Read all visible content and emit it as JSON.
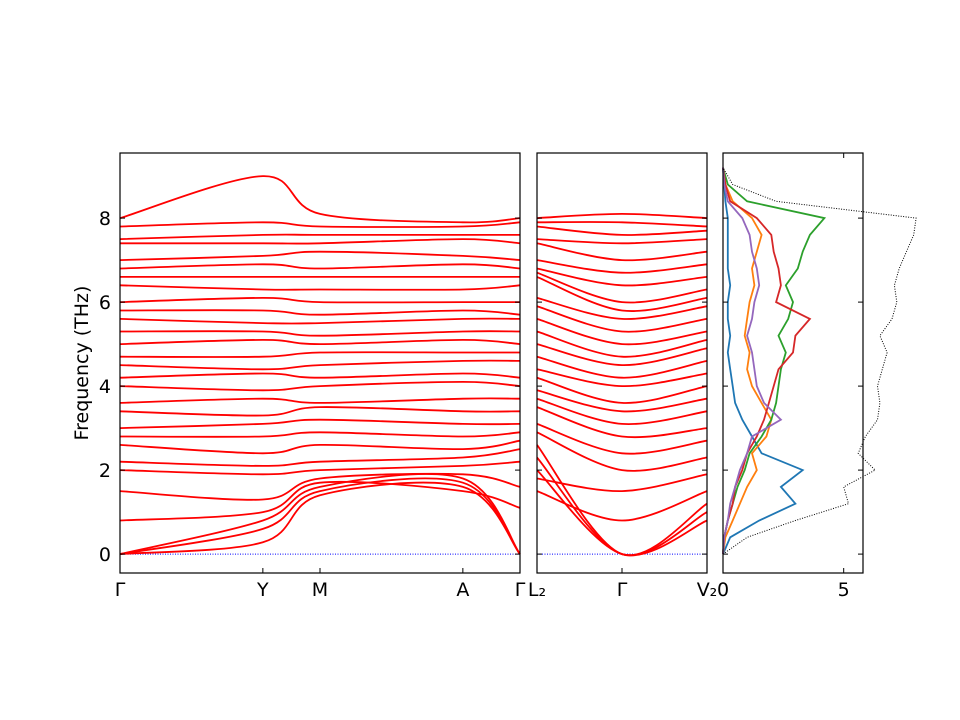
{
  "chart_data": [
    {
      "type": "line",
      "panel": "band-structure-1",
      "ylabel": "Frequency (THz)",
      "ylim": [
        -0.45,
        9.55
      ],
      "yticks": [
        0,
        2,
        4,
        6,
        8
      ],
      "xticks": [
        {
          "label": "Γ",
          "x": 0.0
        },
        {
          "label": "Y",
          "x": 1.0
        },
        {
          "label": "M",
          "x": 1.4
        },
        {
          "label": "A",
          "x": 2.4
        },
        {
          "label": "Γ",
          "x": 2.8
        }
      ],
      "xlim": [
        0,
        2.8
      ],
      "series": [
        {
          "values_at_ticks": [
            0,
            0.28,
            1.4,
            1.6,
            0
          ]
        },
        {
          "values_at_ticks": [
            0,
            0.6,
            1.5,
            1.7,
            0
          ]
        },
        {
          "values_at_ticks": [
            0,
            0.8,
            1.6,
            1.8,
            0
          ]
        },
        {
          "values_at_ticks": [
            0.8,
            1.0,
            1.7,
            1.5,
            1.1
          ]
        },
        {
          "values_at_ticks": [
            1.5,
            1.3,
            1.8,
            1.9,
            1.6
          ]
        },
        {
          "values_at_ticks": [
            2.0,
            1.9,
            2.0,
            2.1,
            2.2
          ]
        },
        {
          "values_at_ticks": [
            2.2,
            2.1,
            2.2,
            2.3,
            2.5
          ]
        },
        {
          "values_at_ticks": [
            2.6,
            2.4,
            2.6,
            2.5,
            2.7
          ]
        },
        {
          "values_at_ticks": [
            2.8,
            2.8,
            2.9,
            2.8,
            2.9
          ]
        },
        {
          "values_at_ticks": [
            3.0,
            3.1,
            3.2,
            3.1,
            3.1
          ]
        },
        {
          "values_at_ticks": [
            3.4,
            3.3,
            3.5,
            3.4,
            3.4
          ]
        },
        {
          "values_at_ticks": [
            3.6,
            3.7,
            3.6,
            3.7,
            3.7
          ]
        },
        {
          "values_at_ticks": [
            4.0,
            3.9,
            4.0,
            4.1,
            4.0
          ]
        },
        {
          "values_at_ticks": [
            4.2,
            4.3,
            4.2,
            4.3,
            4.2
          ]
        },
        {
          "values_at_ticks": [
            4.5,
            4.4,
            4.5,
            4.6,
            4.6
          ]
        },
        {
          "values_at_ticks": [
            4.7,
            4.7,
            4.8,
            4.8,
            4.8
          ]
        },
        {
          "values_at_ticks": [
            5.0,
            5.1,
            5.0,
            5.1,
            5.0
          ]
        },
        {
          "values_at_ticks": [
            5.3,
            5.3,
            5.2,
            5.3,
            5.3
          ]
        },
        {
          "values_at_ticks": [
            5.6,
            5.5,
            5.5,
            5.6,
            5.6
          ]
        },
        {
          "values_at_ticks": [
            5.8,
            5.8,
            5.7,
            5.8,
            5.7
          ]
        },
        {
          "values_at_ticks": [
            6.0,
            6.1,
            6.0,
            6.0,
            6.0
          ]
        },
        {
          "values_at_ticks": [
            6.4,
            6.3,
            6.3,
            6.3,
            6.4
          ]
        },
        {
          "values_at_ticks": [
            6.6,
            6.6,
            6.6,
            6.6,
            6.6
          ]
        },
        {
          "values_at_ticks": [
            6.8,
            6.9,
            6.8,
            6.9,
            6.8
          ]
        },
        {
          "values_at_ticks": [
            7.0,
            7.1,
            7.2,
            7.1,
            7.0
          ]
        },
        {
          "values_at_ticks": [
            7.4,
            7.4,
            7.4,
            7.5,
            7.4
          ]
        },
        {
          "values_at_ticks": [
            7.5,
            7.6,
            7.6,
            7.6,
            7.6
          ]
        },
        {
          "values_at_ticks": [
            7.8,
            7.9,
            7.8,
            7.8,
            7.9
          ]
        },
        {
          "values_at_ticks": [
            8.0,
            9.0,
            8.1,
            7.9,
            8.0
          ]
        }
      ]
    },
    {
      "type": "line",
      "panel": "band-structure-2",
      "ylim": [
        -0.45,
        9.55
      ],
      "xticks": [
        {
          "label": "L₂",
          "x": 0.0
        },
        {
          "label": "Γ",
          "x": 1.0
        },
        {
          "label": "V₂",
          "x": 2.0
        }
      ],
      "xlim": [
        0,
        2.0
      ],
      "series": [
        {
          "values_at_ticks": [
            2.0,
            0,
            0.8
          ]
        },
        {
          "values_at_ticks": [
            2.3,
            0,
            1.0
          ]
        },
        {
          "values_at_ticks": [
            2.6,
            0,
            1.2
          ]
        },
        {
          "values_at_ticks": [
            1.5,
            0.8,
            1.5
          ]
        },
        {
          "values_at_ticks": [
            1.8,
            1.5,
            1.9
          ]
        },
        {
          "values_at_ticks": [
            2.9,
            2.0,
            2.3
          ]
        },
        {
          "values_at_ticks": [
            3.1,
            2.4,
            2.7
          ]
        },
        {
          "values_at_ticks": [
            3.5,
            2.8,
            3.0
          ]
        },
        {
          "values_at_ticks": [
            3.7,
            3.1,
            3.4
          ]
        },
        {
          "values_at_ticks": [
            3.9,
            3.4,
            3.7
          ]
        },
        {
          "values_at_ticks": [
            4.2,
            3.6,
            4.0
          ]
        },
        {
          "values_at_ticks": [
            4.4,
            4.0,
            4.3
          ]
        },
        {
          "values_at_ticks": [
            4.7,
            4.2,
            4.6
          ]
        },
        {
          "values_at_ticks": [
            5.0,
            4.5,
            4.9
          ]
        },
        {
          "values_at_ticks": [
            5.3,
            4.7,
            5.1
          ]
        },
        {
          "values_at_ticks": [
            5.6,
            5.0,
            5.3
          ]
        },
        {
          "values_at_ticks": [
            5.9,
            5.3,
            5.6
          ]
        },
        {
          "values_at_ticks": [
            6.1,
            5.6,
            5.9
          ]
        },
        {
          "values_at_ticks": [
            6.6,
            5.8,
            6.1
          ]
        },
        {
          "values_at_ticks": [
            6.7,
            6.0,
            6.3
          ]
        },
        {
          "values_at_ticks": [
            6.8,
            6.4,
            6.6
          ]
        },
        {
          "values_at_ticks": [
            7.0,
            6.7,
            6.9
          ]
        },
        {
          "values_at_ticks": [
            7.4,
            7.0,
            7.2
          ]
        },
        {
          "values_at_ticks": [
            7.5,
            7.4,
            7.5
          ]
        },
        {
          "values_at_ticks": [
            7.8,
            7.6,
            7.7
          ]
        },
        {
          "values_at_ticks": [
            7.9,
            7.9,
            7.8
          ]
        },
        {
          "values_at_ticks": [
            8.0,
            8.1,
            8.0
          ]
        }
      ]
    },
    {
      "type": "line",
      "panel": "density-of-states",
      "xlim": [
        0,
        5.8
      ],
      "xticks": [
        0,
        5
      ],
      "ylim": [
        -0.45,
        9.55
      ],
      "series_colors": [
        "#1f77b4",
        "#ff7f0e",
        "#2ca02c",
        "#d62728",
        "#9467bd"
      ],
      "total_color": "#000000",
      "frequency_grid": [
        0.0,
        0.4,
        0.8,
        1.2,
        1.6,
        2.0,
        2.4,
        2.8,
        3.2,
        3.6,
        4.0,
        4.4,
        4.8,
        5.2,
        5.6,
        6.0,
        6.4,
        6.8,
        7.2,
        7.6,
        8.0,
        8.4,
        8.8,
        9.2
      ],
      "series": [
        {
          "values": [
            0.0,
            0.3,
            1.5,
            3.0,
            2.4,
            3.3,
            1.6,
            1.2,
            0.8,
            0.5,
            0.4,
            0.3,
            0.2,
            0.3,
            0.2,
            0.2,
            0.3,
            0.2,
            0.2,
            0.2,
            0.2,
            0.1,
            0.05,
            0.0
          ]
        },
        {
          "values": [
            0.0,
            0.1,
            0.4,
            0.7,
            1.0,
            1.4,
            1.2,
            1.8,
            2.0,
            1.6,
            1.2,
            1.0,
            1.1,
            0.9,
            1.0,
            1.1,
            1.3,
            1.2,
            1.4,
            1.6,
            1.2,
            0.4,
            0.1,
            0.0
          ]
        },
        {
          "values": [
            0.0,
            0.05,
            0.2,
            0.4,
            0.6,
            0.9,
            1.1,
            1.6,
            2.0,
            2.2,
            2.3,
            2.4,
            2.6,
            2.3,
            2.7,
            2.9,
            2.6,
            3.1,
            3.3,
            3.6,
            4.2,
            1.0,
            0.2,
            0.0
          ]
        },
        {
          "values": [
            0.0,
            0.05,
            0.2,
            0.4,
            0.5,
            0.8,
            1.0,
            1.4,
            1.7,
            1.9,
            2.1,
            2.3,
            2.9,
            3.0,
            3.6,
            2.2,
            2.4,
            2.3,
            2.1,
            2.0,
            1.4,
            0.3,
            0.1,
            0.0
          ]
        },
        {
          "values": [
            0.0,
            0.05,
            0.2,
            0.3,
            0.5,
            0.7,
            1.0,
            1.2,
            2.4,
            1.7,
            1.4,
            1.3,
            1.2,
            1.0,
            1.2,
            1.3,
            1.5,
            1.4,
            1.2,
            1.1,
            0.8,
            0.2,
            0.05,
            0.0
          ]
        },
        {
          "name": "total",
          "values": [
            0.0,
            1.0,
            3.0,
            5.2,
            5.0,
            6.3,
            5.6,
            5.9,
            6.4,
            6.5,
            6.4,
            6.6,
            6.8,
            6.5,
            7.0,
            7.2,
            7.1,
            7.3,
            7.6,
            7.9,
            8.0,
            2.2,
            0.4,
            0.0
          ]
        }
      ]
    }
  ]
}
